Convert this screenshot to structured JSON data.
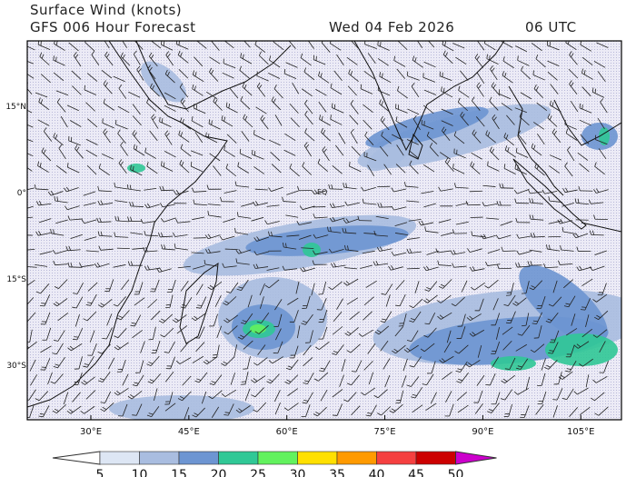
{
  "header": {
    "title": "Surface Wind (knots)",
    "subtitle": "GFS 006 Hour Forecast",
    "date": "Wed 04 Feb 2026",
    "time": "06 UTC"
  },
  "map": {
    "lon_ticks": [
      {
        "lon": 30,
        "label": "30°E"
      },
      {
        "lon": 45,
        "label": "45°E"
      },
      {
        "lon": 60,
        "label": "60°E"
      },
      {
        "lon": 75,
        "label": "75°E"
      },
      {
        "lon": 90,
        "label": "90°E"
      },
      {
        "lon": 105,
        "label": "105°E"
      }
    ],
    "lat_ticks": [
      {
        "lat": 15,
        "label": "15°N"
      },
      {
        "lat": 0,
        "label": "0°"
      },
      {
        "lat": -15,
        "label": "15°S"
      },
      {
        "lat": -30,
        "label": "30°S"
      }
    ],
    "equator_label": "EQ"
  },
  "colorbar": {
    "labels": [
      "5",
      "10",
      "15",
      "20",
      "25",
      "30",
      "35",
      "40",
      "45",
      "50"
    ],
    "colors": [
      "#ffffff",
      "#dde6f4",
      "#a9bde0",
      "#6d95d2",
      "#30c896",
      "#62f25e",
      "#ffe000",
      "#ff9a00",
      "#f54040",
      "#cc0000",
      "#cc00cc"
    ]
  }
}
